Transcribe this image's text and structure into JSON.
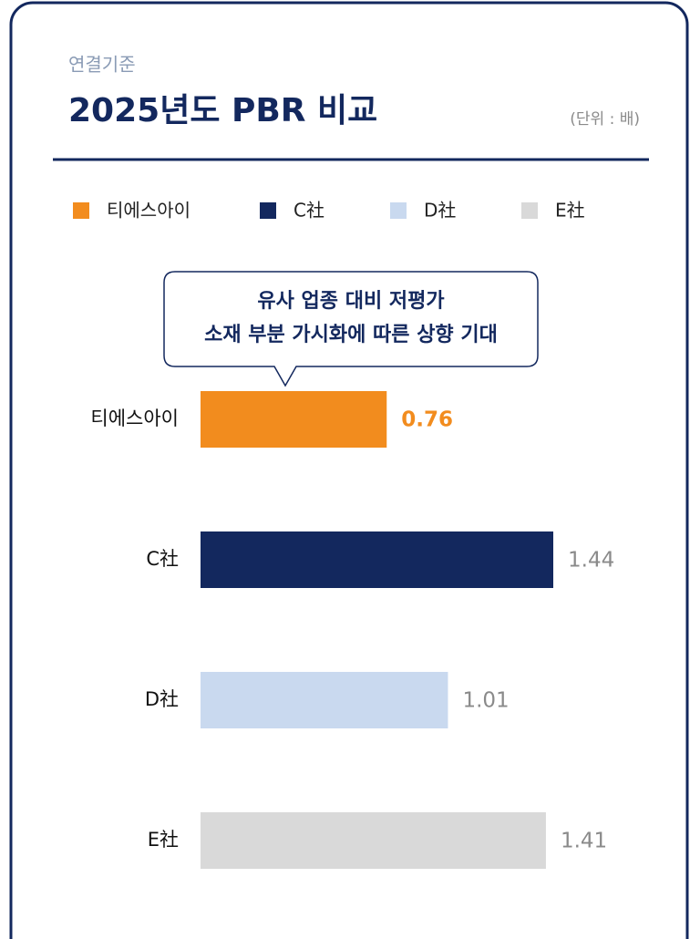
{
  "chart_data": {
    "type": "bar",
    "orientation": "horizontal",
    "subtitle": "연결기준",
    "title": "2025년도 PBR 비교",
    "unit": "(단위 : 배)",
    "annotation": [
      "유사 업종 대비 저평가",
      "소재 부분 가시화에 따른 상향 기대"
    ],
    "categories": [
      "티에스아이",
      "C社",
      "D社",
      "E社"
    ],
    "values": [
      0.76,
      1.44,
      1.01,
      1.41
    ],
    "colors": [
      "#f28c1e",
      "#13285e",
      "#c9d9ef",
      "#d9d9d9"
    ],
    "value_label_colors": [
      "#f28c1e",
      "#8a8a8a",
      "#8a8a8a",
      "#8a8a8a"
    ],
    "legend": true
  }
}
